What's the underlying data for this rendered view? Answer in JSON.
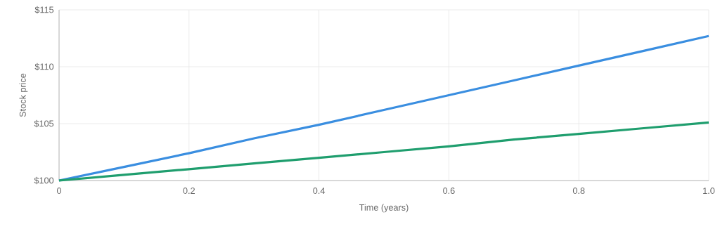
{
  "chart_data": {
    "type": "line",
    "xlabel": "Time (years)",
    "ylabel": "Stock price",
    "x": [
      0,
      0.1,
      0.2,
      0.3,
      0.4,
      0.5,
      0.6,
      0.7,
      0.8,
      0.9,
      1.0
    ],
    "series": [
      {
        "color": "#3a8ee0",
        "values": [
          100,
          101.2,
          102.4,
          103.7,
          104.9,
          106.2,
          107.5,
          108.8,
          110.1,
          111.4,
          112.7
        ]
      },
      {
        "color": "#1f9e6e",
        "values": [
          100,
          100.5,
          101.0,
          101.5,
          102.0,
          102.5,
          103.0,
          103.6,
          104.1,
          104.6,
          105.1
        ]
      }
    ],
    "xlim": [
      0,
      1.0
    ],
    "ylim": [
      100,
      115
    ],
    "xticks": [
      0,
      0.2,
      0.4,
      0.6,
      0.8,
      {
        "value": 1.0,
        "label": "1.0"
      }
    ],
    "yticks": [
      {
        "value": 100,
        "label": "$100"
      },
      {
        "value": 105,
        "label": "$105"
      },
      {
        "value": 110,
        "label": "$110"
      },
      {
        "value": 115,
        "label": "$115"
      }
    ],
    "grid": true
  }
}
